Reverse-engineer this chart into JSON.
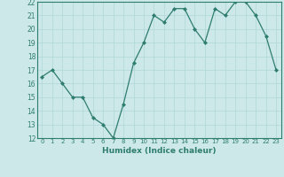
{
  "x": [
    0,
    1,
    2,
    3,
    4,
    5,
    6,
    7,
    8,
    9,
    10,
    11,
    12,
    13,
    14,
    15,
    16,
    17,
    18,
    19,
    20,
    21,
    22,
    23
  ],
  "y": [
    16.5,
    17.0,
    16.0,
    15.0,
    15.0,
    13.5,
    13.0,
    12.0,
    14.5,
    17.5,
    19.0,
    21.0,
    20.5,
    21.5,
    21.5,
    20.0,
    19.0,
    21.5,
    21.0,
    22.0,
    22.0,
    21.0,
    19.5,
    17.0
  ],
  "line_color": "#2e7d6e",
  "marker_color": "#2e7d6e",
  "bg_color": "#cce8e8",
  "grid_color": "#b0d8d8",
  "xlabel": "Humidex (Indice chaleur)",
  "xlim": [
    -0.5,
    23.5
  ],
  "ylim": [
    12,
    22
  ],
  "yticks": [
    12,
    13,
    14,
    15,
    16,
    17,
    18,
    19,
    20,
    21,
    22
  ],
  "xticks": [
    0,
    1,
    2,
    3,
    4,
    5,
    6,
    7,
    8,
    9,
    10,
    11,
    12,
    13,
    14,
    15,
    16,
    17,
    18,
    19,
    20,
    21,
    22,
    23
  ],
  "xtick_labels": [
    "0",
    "1",
    "2",
    "3",
    "4",
    "5",
    "6",
    "7",
    "8",
    "9",
    "10",
    "11",
    "12",
    "13",
    "14",
    "15",
    "16",
    "17",
    "18",
    "19",
    "20",
    "21",
    "22",
    "23"
  ]
}
